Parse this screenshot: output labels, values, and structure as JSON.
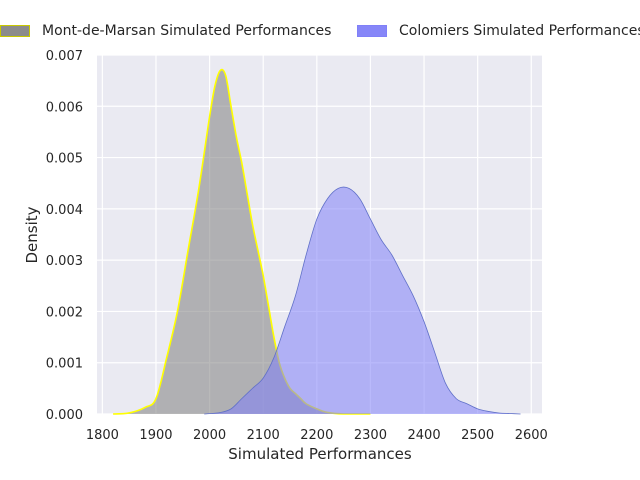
{
  "chart_data": {
    "type": "area",
    "xlabel": "Simulated Performances",
    "ylabel": "Density",
    "xlim": [
      1790,
      2620
    ],
    "ylim": [
      0,
      0.007
    ],
    "x_ticks": [
      1800,
      1900,
      2000,
      2100,
      2200,
      2300,
      2400,
      2500,
      2600
    ],
    "x_tick_labels": [
      "1800",
      "1900",
      "2000",
      "2100",
      "2200",
      "2300",
      "2400",
      "2500",
      "2600"
    ],
    "y_ticks": [
      0,
      0.001,
      0.002,
      0.003,
      0.004,
      0.005,
      0.006,
      0.007
    ],
    "y_tick_labels": [
      "0.000",
      "0.001",
      "0.002",
      "0.003",
      "0.004",
      "0.005",
      "0.006",
      "0.007"
    ],
    "grid": true,
    "legend_position": "top",
    "series": [
      {
        "name": "Mont-de-Marsan Simulated Performances",
        "fill_color": "#808080",
        "line_color": "#ffff00",
        "x": [
          1820,
          1850,
          1880,
          1900,
          1920,
          1940,
          1960,
          1980,
          2000,
          2010,
          2020,
          2030,
          2040,
          2050,
          2060,
          2070,
          2080,
          2090,
          2100,
          2110,
          2120,
          2130,
          2140,
          2150,
          2160,
          2170,
          2180,
          2200,
          2220,
          2250,
          2300
        ],
        "y": [
          0,
          2e-05,
          0.00013,
          0.0003,
          0.0011,
          0.002,
          0.0032,
          0.0044,
          0.0058,
          0.0064,
          0.0067,
          0.0066,
          0.006,
          0.0054,
          0.0049,
          0.0043,
          0.0037,
          0.0032,
          0.0027,
          0.0021,
          0.0015,
          0.001,
          0.0007,
          0.0005,
          0.0004,
          0.0003,
          0.0002,
          0.0001,
          3e-05,
          0,
          0
        ]
      },
      {
        "name": "Colomiers Simulated Performances",
        "fill_color": "#8080f8",
        "line_color": "#6070c8",
        "x": [
          1990,
          2020,
          2040,
          2060,
          2080,
          2100,
          2120,
          2140,
          2160,
          2180,
          2200,
          2220,
          2240,
          2260,
          2280,
          2300,
          2320,
          2340,
          2360,
          2380,
          2400,
          2420,
          2440,
          2460,
          2480,
          2500,
          2520,
          2540,
          2560,
          2580
        ],
        "y": [
          0,
          3e-05,
          0.0001,
          0.0003,
          0.0005,
          0.0007,
          0.0011,
          0.0017,
          0.0023,
          0.0031,
          0.0038,
          0.0042,
          0.0044,
          0.0044,
          0.0042,
          0.0038,
          0.0034,
          0.0031,
          0.0027,
          0.0023,
          0.0018,
          0.0012,
          0.0006,
          0.0003,
          0.0002,
          0.0001,
          5e-05,
          2e-05,
          1e-05,
          0
        ]
      }
    ]
  }
}
